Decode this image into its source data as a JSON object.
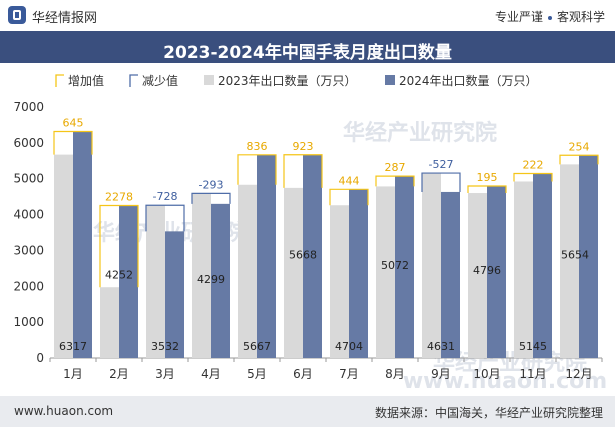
{
  "header": {
    "brand": "华经情报网",
    "tagline_left": "专业严谨",
    "tagline_right": "客观科学"
  },
  "footer": {
    "site": "www.huaon.com",
    "source": "数据来源：中国海关，华经产业研究院整理"
  },
  "watermark": "华经产业研究院",
  "watermark2": "www.huaon.com",
  "colors": {
    "series_2023": "#d9d9d9",
    "series_2024": "#667aa5",
    "increase": "#f5c518",
    "decrease": "#4f6da8",
    "title_bar": "#3a4f7e"
  },
  "chart_data": {
    "type": "bar",
    "title": "2023-2024年中国手表月度出口数量",
    "categories": [
      "1月",
      "2月",
      "3月",
      "4月",
      "5月",
      "6月",
      "7月",
      "8月",
      "9月",
      "10月",
      "11月",
      "12月"
    ],
    "ylim": [
      0,
      7000
    ],
    "yticks": [
      0,
      1000,
      2000,
      3000,
      4000,
      5000,
      6000,
      7000
    ],
    "legend": [
      "增加值",
      "减少值",
      "2023年出口数量（万只）",
      "2024年出口数量（万只）"
    ],
    "legend_position": "top-left",
    "series": [
      {
        "name": "2023年出口数量（万只）",
        "values": [
          5672,
          1974,
          4260,
          4592,
          4831,
          4745,
          4260,
          4785,
          5158,
          4601,
          4923,
          5400
        ]
      },
      {
        "name": "2024年出口数量（万只）",
        "values": [
          6317,
          4252,
          3532,
          4299,
          5667,
          5668,
          4704,
          5072,
          4631,
          4796,
          5145,
          5654
        ]
      }
    ],
    "changes": [
      "645",
      "2278",
      "-728",
      "-293",
      "836",
      "923",
      "444",
      "287",
      "-527",
      "195",
      "222",
      "254"
    ]
  }
}
